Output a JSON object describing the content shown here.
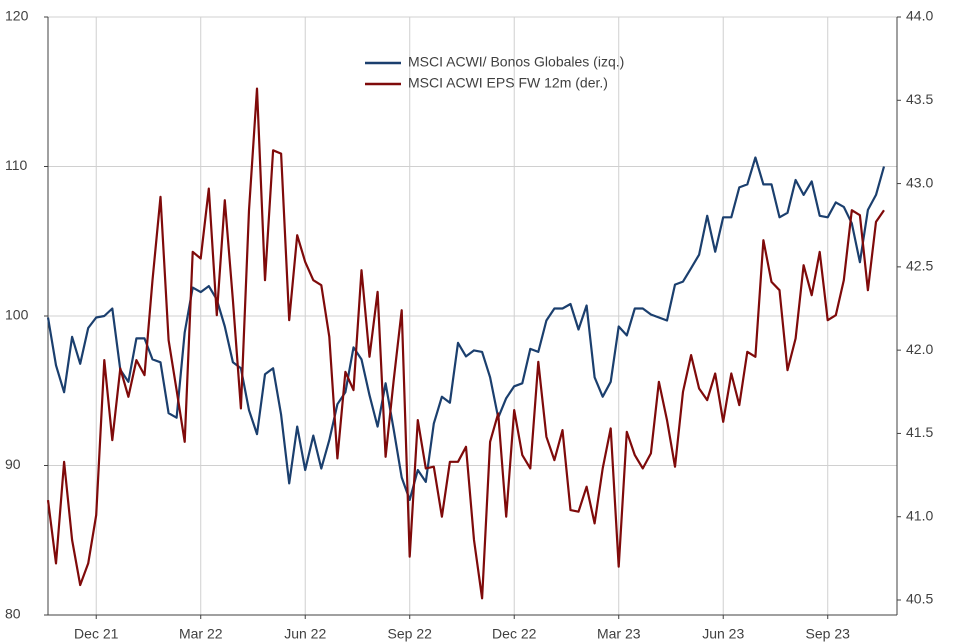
{
  "chart_data": {
    "type": "line",
    "categories": [
      null,
      null,
      null,
      null,
      null,
      null,
      "Dec 21",
      null,
      null,
      null,
      null,
      null,
      null,
      null,
      null,
      null,
      null,
      null,
      null,
      "Mar 22",
      null,
      null,
      null,
      null,
      null,
      null,
      null,
      null,
      null,
      null,
      null,
      null,
      "Jun 22",
      null,
      null,
      null,
      null,
      null,
      null,
      null,
      null,
      null,
      null,
      null,
      null,
      "Sep 22",
      null,
      null,
      null,
      null,
      null,
      null,
      null,
      null,
      null,
      null,
      null,
      null,
      "Dec 22",
      null,
      null,
      null,
      null,
      null,
      null,
      null,
      null,
      null,
      null,
      null,
      null,
      "Mar 23",
      null,
      null,
      null,
      null,
      null,
      null,
      null,
      null,
      null,
      null,
      null,
      null,
      "Jun 23",
      null,
      null,
      null,
      null,
      null,
      null,
      null,
      null,
      null,
      null,
      null,
      null,
      "Sep 23",
      null,
      null,
      null,
      null,
      null,
      null,
      null
    ],
    "series": [
      {
        "name": "MSCI ACWI/ Bonos Globales (izq.)",
        "color": "#1b3f6e",
        "values": [
          99.9,
          96.7,
          94.9,
          98.6,
          96.8,
          99.2,
          99.9,
          100,
          100.5,
          96.4,
          95.6,
          98.5,
          98.5,
          97.1,
          96.9,
          93.5,
          93.2,
          98.9,
          101.9,
          101.6,
          102,
          101.1,
          99.3,
          96.9,
          96.5,
          93.7,
          92.1,
          96.1,
          96.5,
          93.4,
          88.8,
          92.6,
          89.7,
          92,
          89.8,
          91.7,
          94.1,
          94.9,
          97.9,
          97.1,
          94.7,
          92.6,
          95.5,
          92.4,
          89.2,
          87.7,
          89.7,
          88.9,
          92.8,
          94.6,
          94.2,
          98.2,
          97.3,
          97.7,
          97.6,
          95.9,
          93.2,
          94.5,
          95.3,
          95.5,
          97.8,
          97.6,
          99.7,
          100.5,
          100.5,
          100.8,
          99.1,
          100.7,
          95.9,
          94.6,
          95.6,
          99.3,
          98.7,
          100.5,
          100.5,
          100.1,
          99.9,
          99.7,
          102.1,
          102.3,
          103.2,
          104.1,
          106.7,
          104.3,
          106.6,
          106.6,
          108.6,
          108.8,
          110.6,
          108.8,
          108.8,
          106.6,
          106.9,
          109.1,
          108.1,
          109,
          106.7,
          106.6,
          107.6,
          107.3,
          106.2,
          103.6,
          107.1,
          108.1,
          110
        ]
      },
      {
        "name": "MSCI ACWI EPS FW 12m (der.)",
        "color": "#7f0a0a",
        "axis": "y2",
        "values": [
          41.1,
          40.72,
          41.33,
          40.86,
          40.59,
          40.72,
          41.01,
          41.94,
          41.46,
          41.89,
          41.72,
          41.94,
          41.85,
          42.42,
          42.92,
          42.06,
          41.76,
          41.45,
          42.59,
          42.55,
          42.97,
          42.21,
          42.9,
          42.3,
          41.65,
          42.84,
          43.57,
          42.42,
          43.2,
          43.18,
          42.18,
          42.69,
          42.53,
          42.42,
          42.39,
          42.08,
          41.35,
          41.87,
          41.76,
          42.48,
          41.96,
          42.35,
          41.36,
          41.82,
          42.24,
          40.76,
          41.58,
          41.29,
          41.3,
          41.0,
          41.33,
          41.33,
          41.42,
          40.86,
          40.51,
          41.45,
          41.62,
          41.0,
          41.64,
          41.37,
          41.29,
          41.93,
          41.48,
          41.34,
          41.52,
          41.04,
          41.03,
          41.18,
          40.96,
          41.29,
          41.53,
          40.7,
          41.51,
          41.37,
          41.29,
          41.38,
          41.81,
          41.58,
          41.3,
          41.75,
          41.97,
          41.77,
          41.7,
          41.86,
          41.57,
          41.86,
          41.67,
          41.99,
          41.96,
          42.66,
          42.41,
          42.36,
          41.88,
          42.07,
          42.51,
          42.33,
          42.59,
          42.18,
          42.21,
          42.42,
          42.84,
          42.81,
          42.36,
          42.77,
          42.84
        ]
      }
    ],
    "ylim": [
      80,
      120
    ],
    "yticks": [
      80,
      90,
      100,
      110,
      120
    ],
    "y2lim": [
      40.41,
      44.0
    ],
    "y2ticks": [
      40.5,
      {
        "value": 41.0,
        "label": "41.0"
      },
      41.5,
      {
        "value": 42.0,
        "label": "42.0"
      },
      42.5,
      {
        "value": 43.0,
        "label": "43.0"
      },
      43.5,
      {
        "value": 44.0,
        "label": "44.0"
      }
    ],
    "grid": true,
    "legend": "top"
  }
}
